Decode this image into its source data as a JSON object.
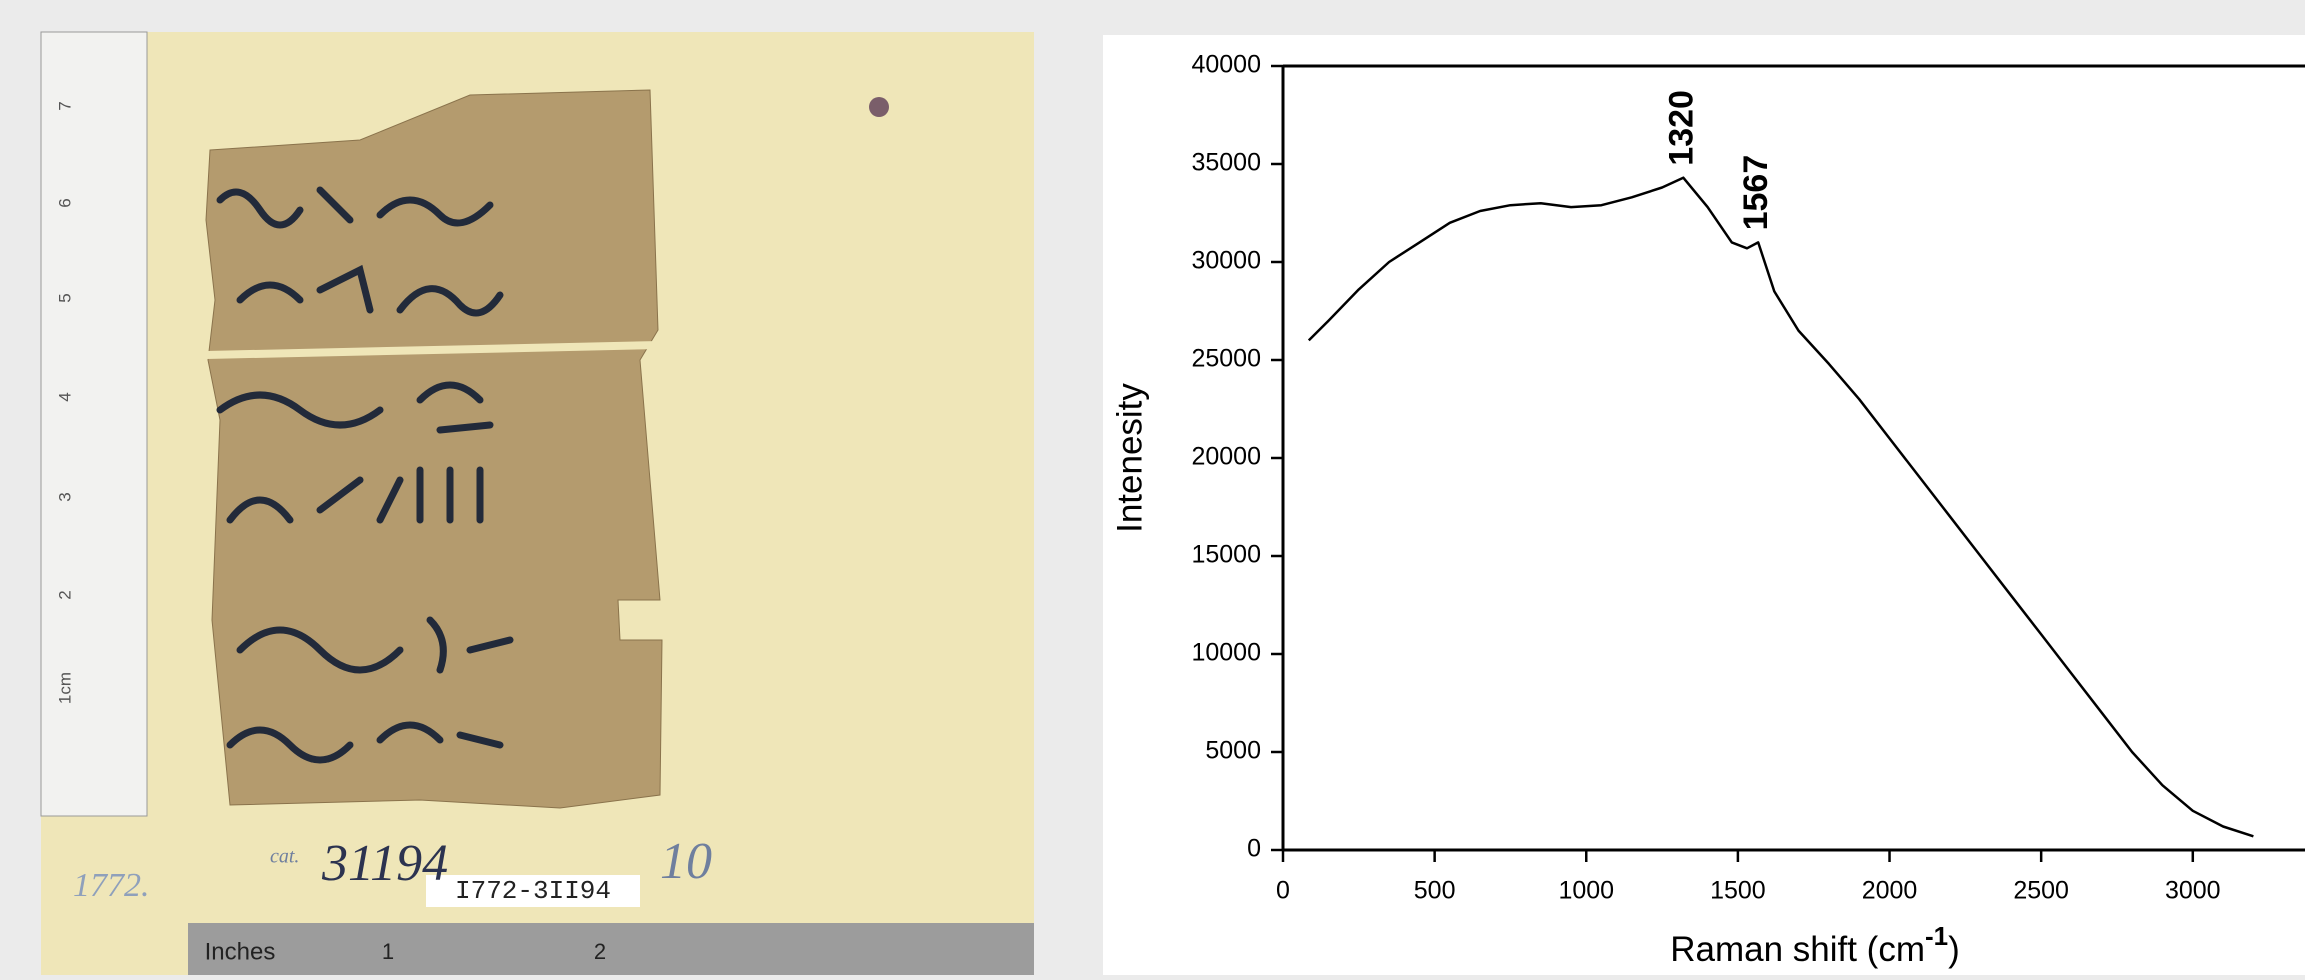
{
  "photo": {
    "ruler_cm": [
      "1cm",
      "2",
      "3",
      "4",
      "5",
      "6",
      "7"
    ],
    "ruler_inches": [
      "Inches",
      "1",
      "2"
    ],
    "labels": {
      "number": "1772.",
      "cat": "cat.",
      "catalog": "31194",
      "tag": "I772-3II94",
      "sheet": "10"
    }
  },
  "chart_data": {
    "type": "line",
    "y_label": "Intenesity",
    "x_label": {
      "main": "Raman shift (cm",
      "sup": "-1",
      "end": ")"
    },
    "xlim": [
      0,
      3370
    ],
    "xticks": [
      0,
      500,
      1000,
      1500,
      2000,
      2500,
      3000
    ],
    "ylim": [
      0,
      40000
    ],
    "yticks": [
      0,
      5000,
      10000,
      15000,
      20000,
      25000,
      30000,
      35000,
      40000
    ],
    "series": [
      {
        "color": "#000000",
        "x": [
          85,
          150,
          250,
          350,
          450,
          550,
          650,
          750,
          850,
          950,
          1050,
          1150,
          1250,
          1320,
          1400,
          1480,
          1530,
          1567,
          1620,
          1700,
          1800,
          1900,
          2000,
          2100,
          2200,
          2300,
          2400,
          2500,
          2600,
          2700,
          2800,
          2900,
          3000,
          3100,
          3200
        ],
        "values": [
          26000,
          27000,
          28600,
          30000,
          31000,
          32000,
          32600,
          32900,
          33000,
          32800,
          32900,
          33300,
          33800,
          34300,
          32800,
          31000,
          30700,
          31000,
          28500,
          26500,
          24800,
          23000,
          21000,
          19000,
          17000,
          15000,
          13000,
          11000,
          9000,
          7000,
          5000,
          3300,
          2000,
          1200,
          700
        ]
      }
    ],
    "annotations": [
      {
        "text": "1320",
        "x": 1320,
        "y": 34300
      },
      {
        "text": "1567",
        "x": 1567,
        "y": 31000
      }
    ]
  }
}
